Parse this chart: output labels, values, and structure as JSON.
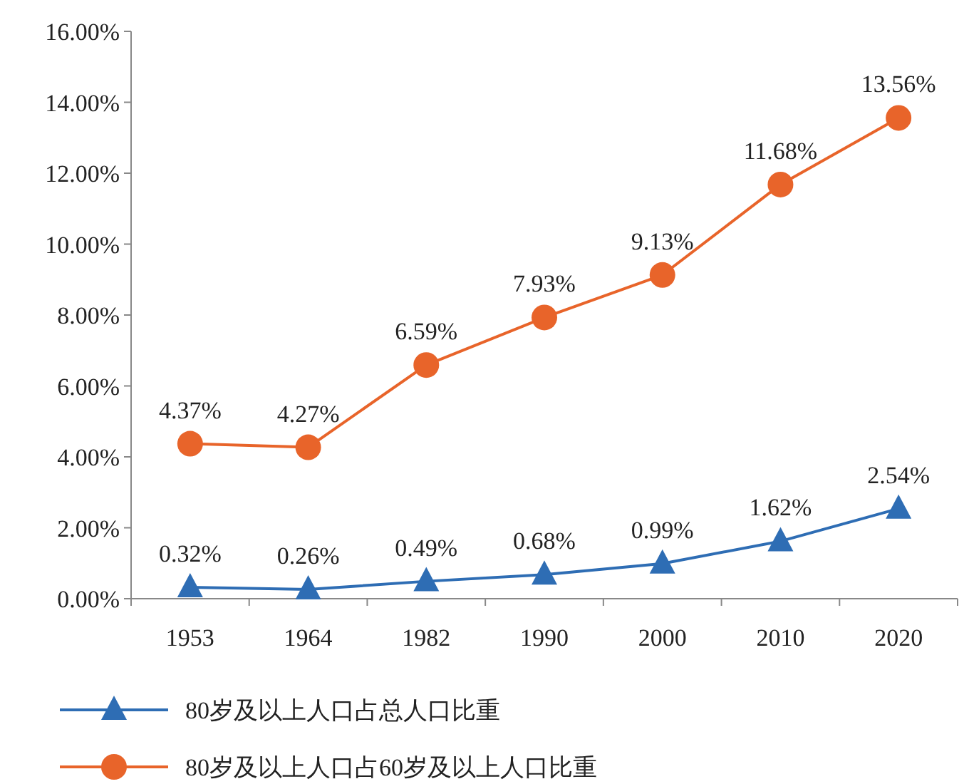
{
  "chart_data": {
    "type": "line",
    "categories": [
      "1953",
      "1964",
      "1982",
      "1990",
      "2000",
      "2010",
      "2020"
    ],
    "ylim": [
      0,
      16
    ],
    "yticks": [
      {
        "value": 0,
        "label": "0.00%"
      },
      {
        "value": 2,
        "label": "2.00%"
      },
      {
        "value": 4,
        "label": "4.00%"
      },
      {
        "value": 6,
        "label": "6.00%"
      },
      {
        "value": 8,
        "label": "8.00%"
      },
      {
        "value": 10,
        "label": "10.00%"
      },
      {
        "value": 12,
        "label": "12.00%"
      },
      {
        "value": 14,
        "label": "14.00%"
      },
      {
        "value": 16,
        "label": "16.00%"
      }
    ],
    "legend": "bottom",
    "series": [
      {
        "name": "80岁及以上人口占总人口比重",
        "color": "#2e6db4",
        "marker": "triangle",
        "values": [
          0.32,
          0.26,
          0.49,
          0.68,
          0.99,
          1.62,
          2.54
        ],
        "value_labels": [
          "0.32%",
          "0.26%",
          "0.49%",
          "0.68%",
          "0.99%",
          "1.62%",
          "2.54%"
        ]
      },
      {
        "name": "80岁及以上人口占60岁及以上人口比重",
        "color": "#e8642a",
        "marker": "circle",
        "values": [
          4.37,
          4.27,
          6.59,
          7.93,
          9.13,
          11.68,
          13.56
        ],
        "value_labels": [
          "4.37%",
          "4.27%",
          "6.59%",
          "7.93%",
          "9.13%",
          "11.68%",
          "13.56%"
        ]
      }
    ]
  }
}
